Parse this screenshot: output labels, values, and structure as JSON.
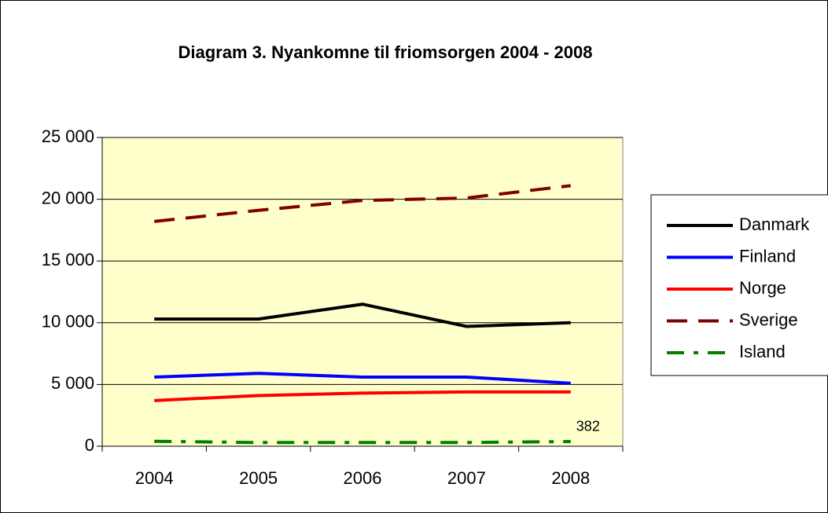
{
  "chart_data": {
    "type": "line",
    "title": "Diagram 3. Nyankomne til friomsorgen 2004 - 2008",
    "categories": [
      "2004",
      "2005",
      "2006",
      "2007",
      "2008"
    ],
    "series": [
      {
        "name": "Danmark",
        "color": "#000000",
        "dash": "solid",
        "values": [
          10300,
          10300,
          11500,
          9700,
          10000
        ]
      },
      {
        "name": "Finland",
        "color": "#0000ff",
        "dash": "solid",
        "values": [
          5600,
          5900,
          5600,
          5600,
          5100
        ]
      },
      {
        "name": "Norge",
        "color": "#ff0000",
        "dash": "solid",
        "values": [
          3700,
          4100,
          4300,
          4400,
          4400
        ]
      },
      {
        "name": "Sverige",
        "color": "#800000",
        "dash": "dashed",
        "values": [
          18200,
          19100,
          19900,
          20100,
          21100
        ]
      },
      {
        "name": "Island",
        "color": "#008000",
        "dash": "dashdot",
        "values": [
          400,
          300,
          300,
          300,
          382
        ]
      }
    ],
    "ylim": [
      0,
      25000
    ],
    "yticks": [
      0,
      {
        "value": 5000,
        "label": "5 000"
      },
      {
        "value": 10000,
        "label": "10 000"
      },
      {
        "value": 15000,
        "label": "15 000"
      },
      {
        "value": 20000,
        "label": "20 000"
      },
      {
        "value": 25000,
        "label": "25 000"
      }
    ],
    "grid": true,
    "legend": "right",
    "plot_background": "#ffffcc"
  }
}
